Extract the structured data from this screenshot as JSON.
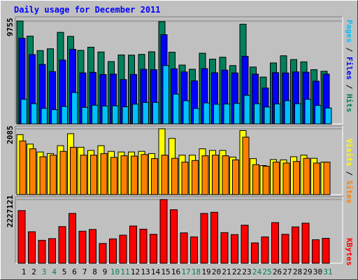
{
  "title": "Daily usage for December 2011",
  "chart_data": [
    {
      "type": "bar",
      "panel": "hits",
      "categories": [
        "1",
        "2",
        "3",
        "4",
        "5",
        "6",
        "7",
        "8",
        "9",
        "10",
        "11",
        "12",
        "13",
        "14",
        "15",
        "16",
        "17",
        "18",
        "19",
        "20",
        "21",
        "22",
        "23",
        "24",
        "25",
        "26",
        "27",
        "28",
        "29",
        "30",
        "31"
      ],
      "y_tick_label": "9755",
      "ylim": [
        0,
        9755
      ],
      "axis_labels": {
        "pages": "Pages",
        "files": "Files",
        "hits": "Hits",
        "sep": " / "
      },
      "series": [
        {
          "name": "Hits",
          "values": [
            9755,
            8320,
            6950,
            7120,
            8680,
            8300,
            6970,
            7270,
            6820,
            5910,
            6540,
            6520,
            6590,
            6840,
            9700,
            6800,
            5580,
            5180,
            6700,
            6140,
            6320,
            5530,
            9450,
            5390,
            4440,
            5780,
            6460,
            6100,
            5880,
            5140,
            4990
          ]
        },
        {
          "name": "Files",
          "values": [
            8120,
            6570,
            5640,
            4960,
            6050,
            7070,
            4840,
            4890,
            4680,
            4720,
            4200,
            4690,
            5180,
            5140,
            8460,
            5230,
            4930,
            4080,
            5240,
            4850,
            5100,
            4830,
            6410,
            4720,
            3400,
            4860,
            4830,
            4930,
            4900,
            4050,
            4720
          ]
        },
        {
          "name": "Pages",
          "values": [
            2330,
            1920,
            1470,
            1350,
            1650,
            2970,
            1570,
            1770,
            1690,
            1710,
            1620,
            1870,
            2030,
            2040,
            5530,
            2820,
            2200,
            1460,
            1990,
            1860,
            1880,
            1940,
            2710,
            1910,
            1600,
            1890,
            2200,
            1910,
            2330,
            1750,
            1510
          ]
        }
      ],
      "colors": {
        "Hits": "#00805c",
        "Files": "#0000ff",
        "Pages": "#00c0ff"
      }
    },
    {
      "type": "bar",
      "panel": "visits",
      "categories": [
        "1",
        "2",
        "3",
        "4",
        "5",
        "6",
        "7",
        "8",
        "9",
        "10",
        "11",
        "12",
        "13",
        "14",
        "15",
        "16",
        "17",
        "18",
        "19",
        "20",
        "21",
        "22",
        "23",
        "24",
        "25",
        "26",
        "27",
        "28",
        "29",
        "30",
        "31"
      ],
      "y_tick_label": "2085",
      "ylim": [
        0,
        2085
      ],
      "axis_labels": {
        "sites": "Sites",
        "visits": "Visits",
        "sep": " / "
      },
      "series": [
        {
          "name": "Visits",
          "values": [
            1900,
            1600,
            1350,
            1300,
            1550,
            1930,
            1500,
            1400,
            1550,
            1370,
            1350,
            1350,
            1370,
            1300,
            2085,
            1780,
            1250,
            1250,
            1450,
            1400,
            1400,
            1190,
            2030,
            1140,
            920,
            1110,
            1100,
            1200,
            1250,
            1150,
            1030
          ]
        },
        {
          "name": "Sites",
          "values": [
            1700,
            1450,
            1200,
            1250,
            1370,
            1500,
            1250,
            1250,
            1300,
            1180,
            1230,
            1220,
            1270,
            1140,
            1250,
            1150,
            1030,
            1080,
            1230,
            1250,
            1230,
            1100,
            1820,
            950,
            900,
            1030,
            1000,
            1050,
            1150,
            1000,
            1030
          ]
        }
      ],
      "colors": {
        "Visits": "#ffff00",
        "Sites": "#ff8000"
      }
    },
    {
      "type": "bar",
      "panel": "kbytes",
      "categories": [
        "1",
        "2",
        "3",
        "4",
        "5",
        "6",
        "7",
        "8",
        "9",
        "10",
        "11",
        "12",
        "13",
        "14",
        "15",
        "16",
        "17",
        "18",
        "19",
        "20",
        "21",
        "22",
        "23",
        "24",
        "25",
        "26",
        "27",
        "28",
        "29",
        "30",
        "31"
      ],
      "y_tick_label": "2227121",
      "ylim": [
        0,
        2227121
      ],
      "axis_labels": {
        "kbytes": "KBytes"
      },
      "series": [
        {
          "name": "KBytes",
          "values": [
            1840000,
            1100000,
            800000,
            860000,
            1280000,
            1740000,
            1120000,
            1180000,
            690000,
            850000,
            980000,
            1300000,
            1190000,
            1010000,
            2227121,
            1870000,
            1060000,
            920000,
            1740000,
            1780000,
            1070000,
            1000000,
            1330000,
            710000,
            920000,
            1420000,
            1010000,
            1270000,
            1400000,
            820000,
            870000
          ]
        }
      ],
      "colors": {
        "KBytes": "#ff0000"
      }
    }
  ],
  "x_label_colors": {
    "weekday": "#000000",
    "weekend": "#00805c"
  },
  "weekend_days": [
    "3",
    "4",
    "10",
    "11",
    "17",
    "18",
    "24",
    "25",
    "31"
  ]
}
